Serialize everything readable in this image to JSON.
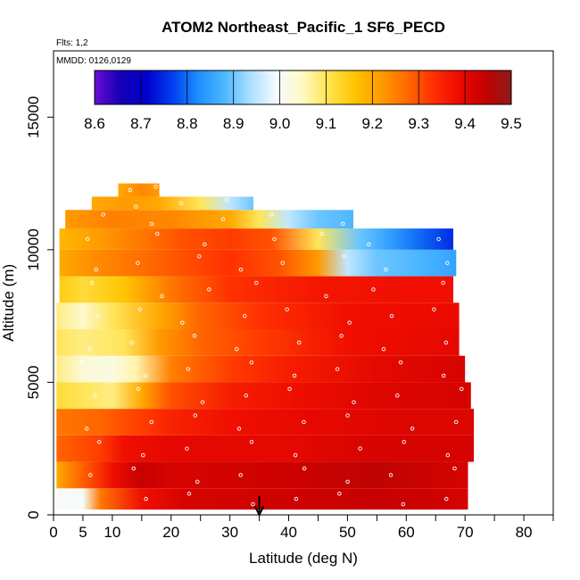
{
  "chart_data": {
    "type": "heatmap",
    "title": "ATOM2 Northeast_Pacific_1 SF6_PECD",
    "subtitle_lines": [
      "Flts: 1,2",
      "MMDD: 0126,0129"
    ],
    "xlabel": "Latitude (deg N)",
    "ylabel": "Altitude (m)",
    "xlim": [
      0,
      85
    ],
    "ylim": [
      0,
      17500
    ],
    "x_ticks": [
      0,
      5,
      10,
      20,
      30,
      40,
      50,
      60,
      70,
      80
    ],
    "x_tick_labels": [
      "0",
      "5",
      "10",
      "20",
      "30",
      "40",
      "50",
      "60",
      "70",
      "80"
    ],
    "x_minor_ticks": [
      15,
      25,
      35,
      45,
      55,
      65,
      75,
      85
    ],
    "y_ticks": [
      0,
      5000,
      10000,
      15000
    ],
    "y_tick_labels": [
      "0",
      "5000",
      "10000",
      "15000"
    ],
    "colorbar": {
      "min": 8.6,
      "max": 9.5,
      "ticks": [
        8.6,
        8.7,
        8.8,
        8.9,
        9.0,
        9.1,
        9.2,
        9.3,
        9.4,
        9.5
      ],
      "tick_labels": [
        "8.6",
        "8.7",
        "8.8",
        "8.9",
        "9.0",
        "9.1",
        "9.2",
        "9.3",
        "9.4",
        "9.5"
      ],
      "colors": [
        "#6a0dd4",
        "#1400b4",
        "#0000cc",
        "#0040f0",
        "#1e90ff",
        "#4db8ff",
        "#aee0ff",
        "#f5fbff",
        "#fff9c0",
        "#ffe34d",
        "#ffc400",
        "#ff9b00",
        "#ff6a00",
        "#ff3000",
        "#ee0a00",
        "#c40000",
        "#8e1a1a"
      ]
    },
    "marker_latitude": 35,
    "rows": [
      {
        "alt": [
          200,
          1000
        ],
        "lat": [
          0.5,
          70.5
        ],
        "knots": [
          [
            0.5,
            9.0
          ],
          [
            5,
            9.0
          ],
          [
            8,
            9.26
          ],
          [
            15,
            9.38
          ],
          [
            22,
            9.42
          ],
          [
            40,
            9.43
          ],
          [
            55,
            9.44
          ],
          [
            65,
            9.43
          ],
          [
            70.5,
            9.42
          ]
        ]
      },
      {
        "alt": [
          1000,
          2000
        ],
        "lat": [
          0.5,
          70.5
        ],
        "knots": [
          [
            0.5,
            9.2
          ],
          [
            6,
            9.3
          ],
          [
            10,
            9.38
          ],
          [
            15,
            9.44
          ],
          [
            20,
            9.42
          ],
          [
            40,
            9.43
          ],
          [
            55,
            9.45
          ],
          [
            70.5,
            9.42
          ]
        ]
      },
      {
        "alt": [
          2000,
          3000
        ],
        "lat": [
          0.5,
          71.5
        ],
        "knots": [
          [
            0.5,
            9.28
          ],
          [
            8,
            9.32
          ],
          [
            12,
            9.38
          ],
          [
            20,
            9.4
          ],
          [
            40,
            9.4
          ],
          [
            55,
            9.42
          ],
          [
            71.5,
            9.42
          ]
        ]
      },
      {
        "alt": [
          3000,
          4000
        ],
        "lat": [
          0.5,
          71.5
        ],
        "knots": [
          [
            0.5,
            9.26
          ],
          [
            8,
            9.28
          ],
          [
            15,
            9.32
          ],
          [
            20,
            9.35
          ],
          [
            30,
            9.38
          ],
          [
            45,
            9.4
          ],
          [
            60,
            9.41
          ],
          [
            71.5,
            9.41
          ]
        ]
      },
      {
        "alt": [
          4000,
          5000
        ],
        "lat": [
          0.5,
          71
        ],
        "knots": [
          [
            0.5,
            9.12
          ],
          [
            5,
            9.1
          ],
          [
            10,
            9.08
          ],
          [
            15,
            9.2
          ],
          [
            20,
            9.3
          ],
          [
            30,
            9.36
          ],
          [
            40,
            9.38
          ],
          [
            55,
            9.41
          ],
          [
            71,
            9.42
          ]
        ]
      },
      {
        "alt": [
          5000,
          6000
        ],
        "lat": [
          0.5,
          70
        ],
        "knots": [
          [
            0.5,
            9.08
          ],
          [
            5,
            9.03
          ],
          [
            10,
            9.02
          ],
          [
            14,
            9.06
          ],
          [
            20,
            9.25
          ],
          [
            30,
            9.32
          ],
          [
            40,
            9.36
          ],
          [
            55,
            9.4
          ],
          [
            70,
            9.42
          ]
        ]
      },
      {
        "alt": [
          6000,
          7000
        ],
        "lat": [
          0.5,
          69
        ],
        "knots": [
          [
            0.5,
            9.1
          ],
          [
            5,
            9.08
          ],
          [
            12,
            9.1
          ],
          [
            18,
            9.22
          ],
          [
            25,
            9.28
          ],
          [
            35,
            9.32
          ],
          [
            50,
            9.38
          ],
          [
            69,
            9.4
          ]
        ]
      },
      {
        "alt": [
          7000,
          8000
        ],
        "lat": [
          0.5,
          69
        ],
        "knots": [
          [
            0.5,
            9.08
          ],
          [
            5,
            9.04
          ],
          [
            10,
            9.1
          ],
          [
            18,
            9.2
          ],
          [
            25,
            9.28
          ],
          [
            35,
            9.33
          ],
          [
            50,
            9.38
          ],
          [
            69,
            9.39
          ]
        ]
      },
      {
        "alt": [
          8000,
          9000
        ],
        "lat": [
          1,
          68
        ],
        "knots": [
          [
            1,
            9.15
          ],
          [
            5,
            9.12
          ],
          [
            12,
            9.16
          ],
          [
            20,
            9.26
          ],
          [
            30,
            9.33
          ],
          [
            45,
            9.37
          ],
          [
            60,
            9.38
          ],
          [
            68,
            9.38
          ]
        ]
      },
      {
        "alt": [
          9000,
          10000
        ],
        "lat": [
          1,
          68.5
        ],
        "knots": [
          [
            1,
            9.2
          ],
          [
            8,
            9.24
          ],
          [
            15,
            9.27
          ],
          [
            22,
            9.3
          ],
          [
            30,
            9.33
          ],
          [
            38,
            9.3
          ],
          [
            45,
            9.22
          ],
          [
            50,
            8.95
          ],
          [
            55,
            8.9
          ],
          [
            62,
            8.88
          ],
          [
            68.5,
            8.85
          ]
        ]
      },
      {
        "alt": [
          10000,
          10800
        ],
        "lat": [
          1,
          68
        ],
        "knots": [
          [
            1,
            9.18
          ],
          [
            8,
            9.22
          ],
          [
            15,
            9.26
          ],
          [
            22,
            9.3
          ],
          [
            30,
            9.32
          ],
          [
            37,
            9.3
          ],
          [
            45,
            9.1
          ],
          [
            52,
            8.9
          ],
          [
            57,
            8.85
          ],
          [
            62,
            8.8
          ],
          [
            68,
            8.75
          ]
        ]
      },
      {
        "alt": [
          10800,
          11500
        ],
        "lat": [
          2,
          51
        ],
        "knots": [
          [
            2,
            9.22
          ],
          [
            10,
            9.25
          ],
          [
            20,
            9.24
          ],
          [
            30,
            9.2
          ],
          [
            35,
            9.1
          ],
          [
            40,
            8.95
          ],
          [
            45,
            8.9
          ],
          [
            51,
            8.88
          ]
        ]
      },
      {
        "alt": [
          11500,
          12000
        ],
        "lat": [
          6.5,
          34
        ],
        "knots": [
          [
            6.5,
            9.2
          ],
          [
            12,
            9.22
          ],
          [
            18,
            9.2
          ],
          [
            25,
            9.1
          ],
          [
            30,
            8.95
          ],
          [
            34,
            8.9
          ]
        ]
      },
      {
        "alt": [
          12000,
          12500
        ],
        "lat": [
          11,
          18
        ],
        "knots": [
          [
            11,
            9.2
          ],
          [
            15,
            9.24
          ],
          [
            18,
            9.22
          ]
        ]
      }
    ]
  }
}
